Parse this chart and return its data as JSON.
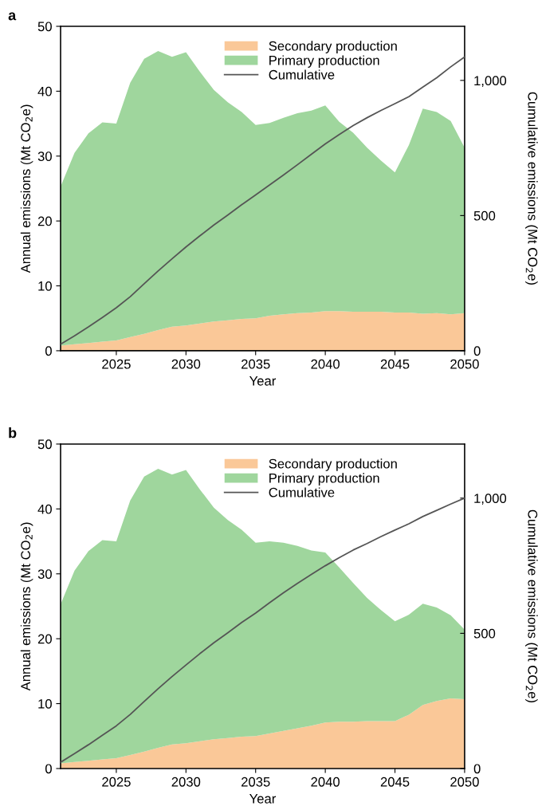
{
  "chart_data": [
    {
      "type": "area",
      "title": "a",
      "stacked": true,
      "xlabel": "Year",
      "ylabel": "Annual emissions (Mt CO$_{2}$e)",
      "y2label": "Cumulative emissions (Mt CO$_{2}$e)",
      "x": [
        2021,
        2022,
        2023,
        2024,
        2025,
        2026,
        2027,
        2028,
        2029,
        2030,
        2031,
        2032,
        2033,
        2034,
        2035,
        2036,
        2037,
        2038,
        2039,
        2040,
        2041,
        2042,
        2043,
        2044,
        2045,
        2046,
        2047,
        2048,
        2049,
        2050
      ],
      "series": [
        {
          "name": "Secondary production",
          "color": "#fac898",
          "values": [
            0.8,
            1.0,
            1.2,
            1.4,
            1.6,
            2.1,
            2.6,
            3.2,
            3.7,
            3.9,
            4.2,
            4.5,
            4.7,
            4.9,
            5.0,
            5.4,
            5.6,
            5.8,
            5.9,
            6.1,
            6.1,
            6.0,
            6.0,
            6.0,
            5.9,
            5.9,
            5.7,
            5.8,
            5.6,
            5.8
          ]
        },
        {
          "name": "Primary production",
          "color": "#9fd69d",
          "values": [
            24.5,
            29.5,
            32.3,
            33.8,
            33.4,
            39.2,
            42.4,
            43.0,
            41.6,
            42.1,
            38.8,
            35.7,
            33.6,
            31.9,
            29.8,
            29.7,
            30.3,
            30.8,
            31.1,
            31.7,
            29.2,
            27.6,
            25.3,
            23.3,
            21.6,
            25.8,
            31.6,
            31.0,
            29.8,
            25.5
          ]
        },
        {
          "name": "Cumulative",
          "type": "line",
          "axis": "y2",
          "color": "#555555",
          "values": [
            24,
            55,
            88,
            123,
            159,
            200,
            248,
            295,
            340,
            384,
            425,
            465,
            502,
            540,
            576,
            613,
            650,
            688,
            727,
            765,
            800,
            833,
            862,
            889,
            914,
            940,
            975,
            1010,
            1050,
            1087
          ]
        }
      ],
      "xlim": [
        2021,
        2050
      ],
      "xticks": [
        2025,
        2030,
        2035,
        2040,
        2045,
        2050
      ],
      "ylim": [
        0,
        50
      ],
      "yticks": [
        0,
        10,
        20,
        30,
        40,
        50
      ],
      "y2lim": [
        0,
        1200
      ],
      "y2ticks": [
        0,
        500,
        {
          "value": 1000,
          "label": "1,000"
        }
      ],
      "legend": "top",
      "grid": false
    },
    {
      "type": "area",
      "title": "b",
      "stacked": true,
      "xlabel": "Year",
      "ylabel": "Annual emissions (Mt CO$_{2}$e)",
      "y2label": "Cumulative emissions (Mt CO$_{2}$e)",
      "x": [
        2021,
        2022,
        2023,
        2024,
        2025,
        2026,
        2027,
        2028,
        2029,
        2030,
        2031,
        2032,
        2033,
        2034,
        2035,
        2036,
        2037,
        2038,
        2039,
        2040,
        2041,
        2042,
        2043,
        2044,
        2045,
        2046,
        2047,
        2048,
        2049,
        2050
      ],
      "series": [
        {
          "name": "Secondary production",
          "color": "#fac898",
          "values": [
            0.8,
            1.0,
            1.2,
            1.4,
            1.6,
            2.1,
            2.6,
            3.2,
            3.7,
            3.9,
            4.2,
            4.5,
            4.7,
            4.9,
            5.0,
            5.4,
            5.8,
            6.2,
            6.6,
            7.1,
            7.2,
            7.2,
            7.3,
            7.3,
            7.3,
            8.3,
            9.8,
            10.4,
            10.8,
            10.7
          ]
        },
        {
          "name": "Primary production",
          "color": "#9fd69d",
          "values": [
            24.5,
            29.5,
            32.3,
            33.8,
            33.4,
            39.2,
            42.4,
            43.0,
            41.6,
            42.1,
            38.8,
            35.7,
            33.6,
            31.9,
            29.8,
            29.6,
            29.0,
            28.1,
            27.0,
            26.2,
            23.8,
            21.4,
            19.0,
            17.1,
            15.4,
            15.4,
            15.6,
            14.4,
            12.8,
            10.7
          ]
        },
        {
          "name": "Cumulative",
          "type": "line",
          "axis": "y2",
          "color": "#555555",
          "values": [
            23,
            55,
            88,
            123,
            158,
            200,
            248,
            295,
            340,
            383,
            425,
            465,
            502,
            540,
            575,
            613,
            650,
            685,
            718,
            750,
            780,
            808,
            832,
            858,
            882,
            905,
            932,
            955,
            978,
            1000
          ]
        }
      ],
      "xlim": [
        2021,
        2050
      ],
      "xticks": [
        2025,
        2030,
        2035,
        2040,
        2045,
        2050
      ],
      "ylim": [
        0,
        50
      ],
      "yticks": [
        0,
        10,
        20,
        30,
        40,
        50
      ],
      "y2lim": [
        0,
        1200
      ],
      "y2ticks": [
        0,
        500,
        {
          "value": 1000,
          "label": "1,000"
        }
      ],
      "legend": "top",
      "grid": false
    }
  ]
}
